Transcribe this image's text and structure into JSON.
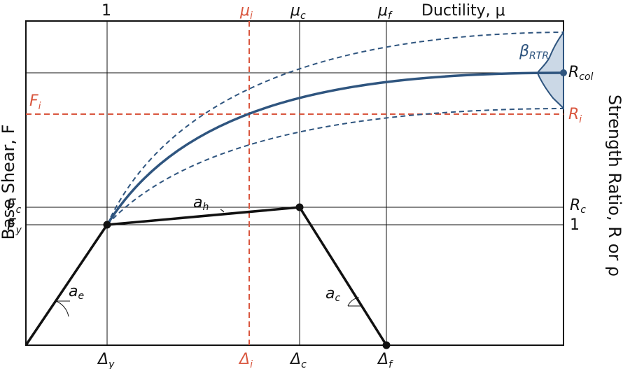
{
  "colors": {
    "black": "#111111",
    "red": "#d9573f",
    "blue": "#2f557f",
    "blue_fill": "#cbd8e6"
  },
  "top_axis": {
    "tick_1": "1",
    "mu_i": "μ",
    "mu_i_sub": "i",
    "mu_c": "μ",
    "mu_c_sub": "c",
    "mu_f": "μ",
    "mu_f_sub": "f",
    "title": "Ductility, μ"
  },
  "left_axis": {
    "title": "Base Shear, F",
    "F_i": "F",
    "F_i_sub": "i",
    "F_c": "F",
    "F_c_sub": "c",
    "F_y": "F",
    "F_y_sub": "y"
  },
  "right_axis": {
    "title": "Strength Ratio, R or ρ",
    "R_col": "R",
    "R_col_sub": "col",
    "R_i": "R",
    "R_i_sub": "i",
    "R_c": "R",
    "R_c_sub": "c",
    "tick_1": "1"
  },
  "bottom_axis": {
    "d_y": "Δ",
    "d_y_sub": "y",
    "d_i": "Δ",
    "d_i_sub": "i",
    "d_c": "Δ",
    "d_c_sub": "c",
    "d_f": "Δ",
    "d_f_sub": "f"
  },
  "annotations": {
    "beta": "β",
    "beta_sub": "RTR",
    "a_e": "a",
    "a_e_sub": "e",
    "a_h": "a",
    "a_h_sub": "h",
    "a_c": "a",
    "a_c_sub": "c"
  }
}
